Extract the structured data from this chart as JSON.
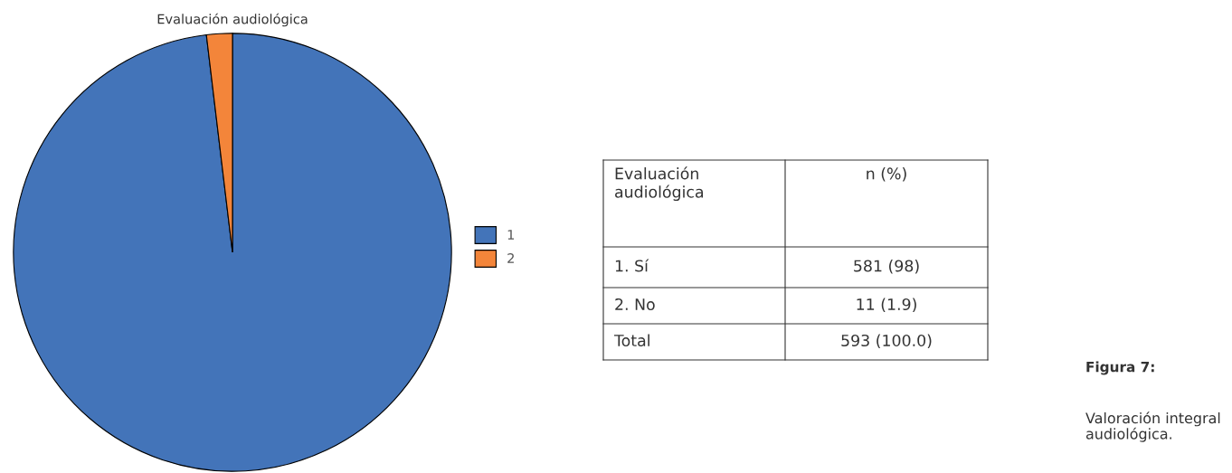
{
  "chart_data": {
    "type": "pie",
    "title": "Evaluación audiológica",
    "categories": [
      "1",
      "2"
    ],
    "values": [
      98.1,
      1.9
    ],
    "colors": [
      "#4374b9",
      "#f3853a"
    ],
    "legend": "right",
    "annotations": [
      "Evaluación audiológica",
      "n (%)",
      "1. Sí",
      "581 (98)",
      "2. No",
      "11 (1.9)",
      "Total",
      "593 (100.0)",
      "Figura 7:",
      "Valoración integral audiológica."
    ]
  }
}
